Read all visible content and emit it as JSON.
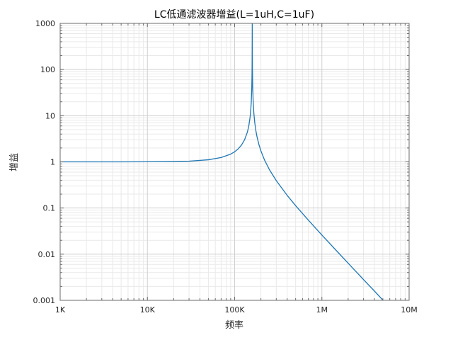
{
  "page": {
    "background": "#ffffff"
  },
  "chart_data": {
    "type": "line",
    "title": "LC低通滤波器增益(L=1uH,C=1uF)",
    "xlabel": "频率",
    "ylabel": "增益",
    "x_scale": "log",
    "y_scale": "log",
    "xlim": [
      1000,
      10000000
    ],
    "ylim": [
      0.001,
      1000
    ],
    "x_tick_values": [
      1000,
      10000,
      100000,
      1000000,
      10000000
    ],
    "x_tick_labels": [
      "1K",
      "10K",
      "100K",
      "1M",
      "10M"
    ],
    "y_tick_values": [
      1000,
      100,
      10,
      1,
      0.1,
      0.01,
      0.001
    ],
    "y_tick_labels": [
      "1000",
      "100",
      "10",
      "1",
      "0.1",
      "0.01",
      "0.001"
    ],
    "grid": "major-and-minor",
    "legend": "none",
    "peak_frequency_hz": 159155,
    "peak_gain_clipped_at": 1000,
    "colors": {
      "curve": "#1f77b4",
      "grid_major": "#d0d0d0",
      "grid_minor": "#e9e9e9",
      "spine": "#6b6b6b",
      "text": "#262626"
    },
    "series": [
      {
        "name": "gain",
        "color": "#1f77b4",
        "x": [
          1000,
          2000,
          5000,
          10000,
          20000,
          30000,
          50000,
          70000,
          90000,
          100000,
          110000,
          120000,
          130000,
          140000,
          145000,
          150000,
          153000,
          155000,
          157000,
          158000,
          158500,
          159000,
          159155,
          159500,
          160000,
          161000,
          163000,
          166000,
          170000,
          175000,
          180000,
          190000,
          200000,
          220000,
          250000,
          300000,
          400000,
          500000,
          700000,
          1000000,
          1500000,
          2000000,
          3000000,
          4000000,
          5030000
        ],
        "y": [
          1.0,
          1.0002,
          1.001,
          1.004,
          1.016,
          1.037,
          1.109,
          1.24,
          1.47,
          1.652,
          1.915,
          2.317,
          3.005,
          4.42,
          5.883,
          8.95,
          13.19,
          19.41,
          37.17,
          69.16,
          121.6,
          515,
          1000,
          230.3,
          93.9,
          42.9,
          20.45,
          11.38,
          7.1,
          4.78,
          3.58,
          2.35,
          1.727,
          1.098,
          0.681,
          0.392,
          0.188,
          0.1127,
          0.0545,
          0.026,
          0.0114,
          0.00637,
          0.00282,
          0.00159,
          0.001
        ]
      }
    ]
  }
}
